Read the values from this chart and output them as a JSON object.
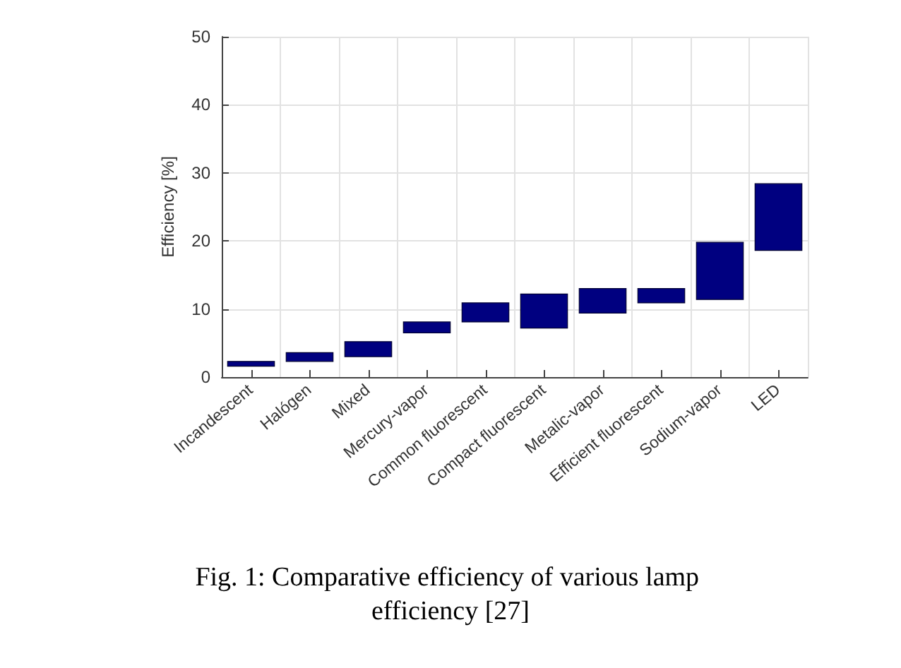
{
  "chart_data": {
    "type": "bar",
    "title": "Fig. 1: Comparative efficiency of various lamp efficiency [27]",
    "ylabel": "Efficiency [%]",
    "categories": [
      "Incandescent",
      "Halógen",
      "Mixed",
      "Mercury-vapor",
      "Common fluorescent",
      "Compact fluorescent",
      "Metalic-vapor",
      "Efficient fluorescent",
      "Sodium-vapor",
      "LED"
    ],
    "base": [
      1.6,
      2.3,
      3.0,
      6.5,
      8.1,
      7.2,
      9.4,
      10.9,
      11.4,
      18.6
    ],
    "values": [
      0.7,
      1.3,
      2.2,
      1.6,
      2.8,
      5.0,
      3.6,
      2.1,
      8.4,
      9.8
    ],
    "color": "#000080",
    "ylim": [
      0,
      50
    ],
    "yticks": [
      0,
      10,
      20,
      30,
      40,
      50
    ],
    "grid": true
  }
}
